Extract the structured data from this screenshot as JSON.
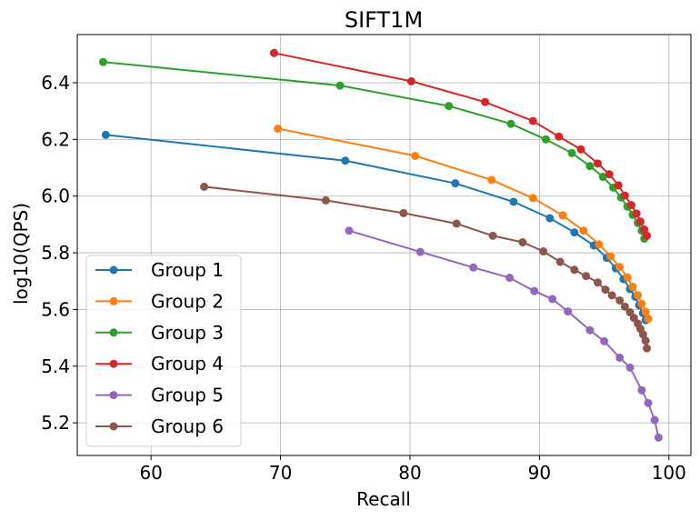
{
  "chart_data": {
    "type": "line",
    "title": "SIFT1M",
    "xlabel": "Recall",
    "ylabel": "log10(QPS)",
    "xlim": [
      54.3,
      101.7
    ],
    "ylim": [
      5.085,
      6.57
    ],
    "xticks": [
      60,
      70,
      80,
      90,
      100
    ],
    "yticks": [
      5.2,
      5.4,
      5.6,
      5.8,
      6.0,
      6.2,
      6.4
    ],
    "ytick_labels": [
      "5.2",
      "5.4",
      "5.6",
      "5.8",
      "6.0",
      "6.2",
      "6.4"
    ],
    "grid": true,
    "legend_position": "lower-left",
    "series": [
      {
        "name": "Group 1",
        "color": "#1f77b4",
        "x": [
          56.5,
          75.0,
          83.5,
          88.0,
          90.8,
          92.7,
          94.2,
          95.2,
          95.9,
          96.5,
          97.0,
          97.4,
          97.7,
          98.0,
          98.2
        ],
        "y": [
          6.216,
          6.125,
          6.045,
          5.98,
          5.922,
          5.872,
          5.826,
          5.782,
          5.745,
          5.707,
          5.672,
          5.645,
          5.615,
          5.587,
          5.562
        ]
      },
      {
        "name": "Group 2",
        "color": "#ff7f0e",
        "x": [
          69.8,
          80.4,
          86.3,
          89.5,
          91.8,
          93.4,
          94.6,
          95.5,
          96.2,
          96.8,
          97.2,
          97.6,
          97.9,
          98.2,
          98.4
        ],
        "y": [
          6.238,
          6.142,
          6.057,
          5.993,
          5.932,
          5.878,
          5.83,
          5.787,
          5.75,
          5.713,
          5.68,
          5.65,
          5.62,
          5.592,
          5.567
        ]
      },
      {
        "name": "Group 3",
        "color": "#2ca02c",
        "x": [
          56.3,
          74.6,
          83.0,
          87.8,
          90.5,
          92.5,
          93.9,
          94.9,
          95.7,
          96.3,
          96.8,
          97.2,
          97.6,
          97.9,
          98.1
        ],
        "y": [
          6.473,
          6.39,
          6.318,
          6.255,
          6.2,
          6.152,
          6.106,
          6.068,
          6.03,
          5.995,
          5.963,
          5.934,
          5.905,
          5.878,
          5.85
        ]
      },
      {
        "name": "Group 4",
        "color": "#d62728",
        "x": [
          69.5,
          80.1,
          85.8,
          89.5,
          91.5,
          93.2,
          94.5,
          95.4,
          96.1,
          96.6,
          97.1,
          97.5,
          97.8,
          98.1,
          98.3
        ],
        "y": [
          6.505,
          6.405,
          6.332,
          6.265,
          6.21,
          6.165,
          6.115,
          6.077,
          6.038,
          6.002,
          5.968,
          5.938,
          5.91,
          5.882,
          5.86
        ]
      },
      {
        "name": "Group 5",
        "color": "#9467bd",
        "x": [
          75.3,
          80.8,
          84.9,
          87.7,
          89.6,
          91.0,
          92.2,
          93.9,
          95.0,
          96.2,
          97.0,
          97.9,
          98.4,
          98.9,
          99.2
        ],
        "y": [
          5.878,
          5.803,
          5.748,
          5.712,
          5.665,
          5.637,
          5.593,
          5.527,
          5.488,
          5.43,
          5.395,
          5.315,
          5.27,
          5.21,
          5.148
        ]
      },
      {
        "name": "Group 6",
        "color": "#8c564b",
        "x": [
          64.1,
          73.5,
          79.5,
          83.6,
          86.4,
          88.7,
          90.3,
          91.6,
          92.7,
          93.6,
          94.5,
          95.1,
          95.6,
          96.2,
          96.6,
          97.0,
          97.3,
          97.6,
          97.8,
          98.0,
          98.2,
          98.3
        ],
        "y": [
          6.033,
          5.985,
          5.94,
          5.903,
          5.86,
          5.837,
          5.805,
          5.768,
          5.74,
          5.718,
          5.695,
          5.67,
          5.65,
          5.632,
          5.61,
          5.59,
          5.57,
          5.55,
          5.532,
          5.512,
          5.49,
          5.463
        ]
      }
    ]
  }
}
